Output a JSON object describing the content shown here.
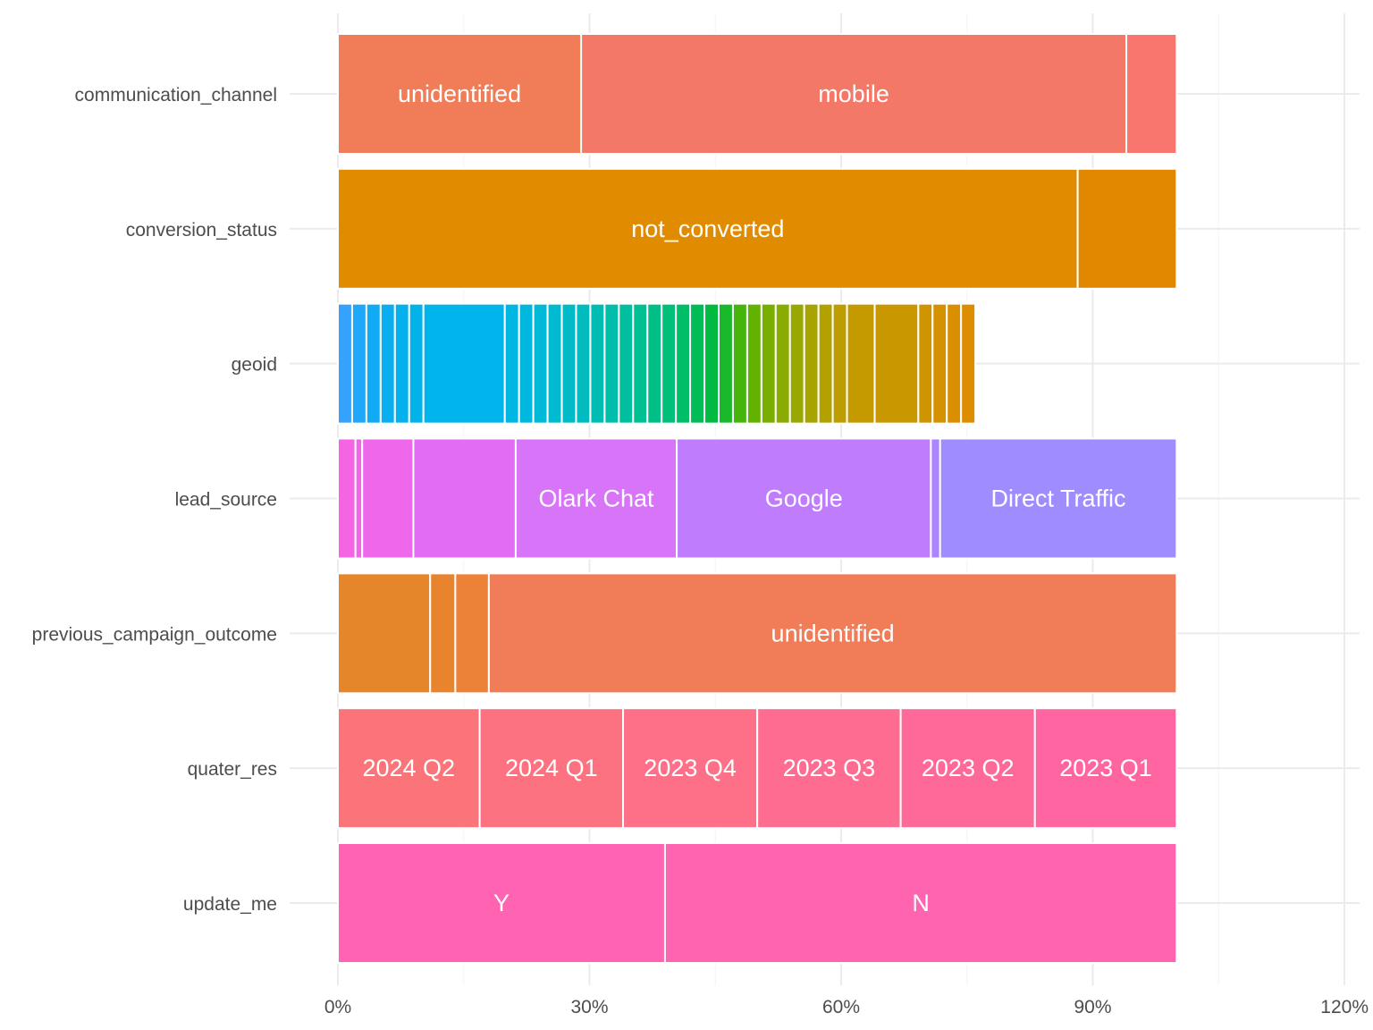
{
  "chart_data": {
    "type": "bar",
    "orientation": "horizontal",
    "stacked": true,
    "title": "",
    "xlabel": "",
    "ylabel": "",
    "xlim": [
      0,
      1.2
    ],
    "x_ticks": [
      {
        "value": 0,
        "label": "0%"
      },
      {
        "value": 0.3,
        "label": "30%"
      },
      {
        "value": 0.6,
        "label": "60%"
      },
      {
        "value": 0.9,
        "label": "90%"
      },
      {
        "value": 1.2,
        "label": "120%"
      }
    ],
    "grid": true,
    "legend": "none",
    "categories": [
      "communication_channel",
      "conversion_status",
      "geoid",
      "lead_source",
      "previous_campaign_outcome",
      "quater_res",
      "update_me"
    ],
    "bars": [
      {
        "category": "communication_channel",
        "segments": [
          {
            "label": "unidentified",
            "value": 0.29,
            "color": "#F07C58"
          },
          {
            "label": "mobile",
            "value": 0.65,
            "color": "#F47867"
          },
          {
            "label": "",
            "value": 0.06,
            "color": "#F8766D"
          }
        ]
      },
      {
        "category": "conversion_status",
        "segments": [
          {
            "label": "not_converted",
            "value": 0.882,
            "color": "#E08B00"
          },
          {
            "label": "",
            "value": 0.118,
            "color": "#E18800"
          }
        ]
      },
      {
        "category": "geoid",
        "segments": [
          {
            "label": "",
            "value": 0.017,
            "color": "#35A2FF"
          },
          {
            "label": "",
            "value": 0.017,
            "color": "#1FA8FA"
          },
          {
            "label": "",
            "value": 0.017,
            "color": "#11ABF5"
          },
          {
            "label": "",
            "value": 0.017,
            "color": "#09AEF0"
          },
          {
            "label": "",
            "value": 0.017,
            "color": "#04B1EC"
          },
          {
            "label": "",
            "value": 0.017,
            "color": "#02B3E9"
          },
          {
            "label": "",
            "value": 0.097,
            "color": "#00B5EC"
          },
          {
            "label": "",
            "value": 0.017,
            "color": "#00B7E4"
          },
          {
            "label": "",
            "value": 0.017,
            "color": "#00B8DE"
          },
          {
            "label": "",
            "value": 0.017,
            "color": "#00B9D7"
          },
          {
            "label": "",
            "value": 0.017,
            "color": "#00BACF"
          },
          {
            "label": "",
            "value": 0.017,
            "color": "#00BBC7"
          },
          {
            "label": "",
            "value": 0.017,
            "color": "#00BCBE"
          },
          {
            "label": "",
            "value": 0.017,
            "color": "#00BDB4"
          },
          {
            "label": "",
            "value": 0.017,
            "color": "#00BEAA"
          },
          {
            "label": "",
            "value": 0.017,
            "color": "#00BF9F"
          },
          {
            "label": "",
            "value": 0.017,
            "color": "#00BF93"
          },
          {
            "label": "",
            "value": 0.017,
            "color": "#00BF86"
          },
          {
            "label": "",
            "value": 0.017,
            "color": "#00BF78"
          },
          {
            "label": "",
            "value": 0.017,
            "color": "#00BE68"
          },
          {
            "label": "",
            "value": 0.017,
            "color": "#00BC56"
          },
          {
            "label": "",
            "value": 0.017,
            "color": "#00BA42"
          },
          {
            "label": "",
            "value": 0.017,
            "color": "#1AB82B"
          },
          {
            "label": "",
            "value": 0.017,
            "color": "#45B50E"
          },
          {
            "label": "",
            "value": 0.017,
            "color": "#62B200"
          },
          {
            "label": "",
            "value": 0.017,
            "color": "#78AE00"
          },
          {
            "label": "",
            "value": 0.017,
            "color": "#8AAB00"
          },
          {
            "label": "",
            "value": 0.017,
            "color": "#99A800"
          },
          {
            "label": "",
            "value": 0.017,
            "color": "#A7A400"
          },
          {
            "label": "",
            "value": 0.017,
            "color": "#B3A100"
          },
          {
            "label": "",
            "value": 0.017,
            "color": "#BD9D00"
          },
          {
            "label": "",
            "value": 0.033,
            "color": "#C49A00"
          },
          {
            "label": "",
            "value": 0.052,
            "color": "#C99800"
          },
          {
            "label": "",
            "value": 0.017,
            "color": "#CF9500"
          },
          {
            "label": "",
            "value": 0.017,
            "color": "#D49200"
          },
          {
            "label": "",
            "value": 0.017,
            "color": "#D98F00"
          },
          {
            "label": "",
            "value": 0.017,
            "color": "#DC8D00"
          }
        ]
      },
      {
        "category": "lead_source",
        "segments": [
          {
            "label": "",
            "value": 0.021,
            "color": "#F564E3"
          },
          {
            "label": "",
            "value": 0.008,
            "color": "#F166E6"
          },
          {
            "label": "",
            "value": 0.061,
            "color": "#EF67EB"
          },
          {
            "label": "",
            "value": 0.122,
            "color": "#E26CF4"
          },
          {
            "label": "Olark Chat",
            "value": 0.192,
            "color": "#D774F8"
          },
          {
            "label": "Google",
            "value": 0.303,
            "color": "#BF7DFE"
          },
          {
            "label": "",
            "value": 0.011,
            "color": "#AB84FF"
          },
          {
            "label": "Direct Traffic",
            "value": 0.282,
            "color": "#9F8CFF"
          }
        ]
      },
      {
        "category": "previous_campaign_outcome",
        "segments": [
          {
            "label": "",
            "value": 0.11,
            "color": "#E6862A"
          },
          {
            "label": "",
            "value": 0.03,
            "color": "#E8832E"
          },
          {
            "label": "",
            "value": 0.04,
            "color": "#EC8138"
          },
          {
            "label": "unidentified",
            "value": 0.82,
            "color": "#F07C58"
          }
        ]
      },
      {
        "category": "quater_res",
        "segments": [
          {
            "label": "2024 Q2",
            "value": 0.169,
            "color": "#FA7479"
          },
          {
            "label": "2024 Q1",
            "value": 0.171,
            "color": "#FC7280"
          },
          {
            "label": "2023 Q4",
            "value": 0.16,
            "color": "#FD7088"
          },
          {
            "label": "2023 Q3",
            "value": 0.171,
            "color": "#FF6C91"
          },
          {
            "label": "2023 Q2",
            "value": 0.16,
            "color": "#FF6999"
          },
          {
            "label": "2023 Q1",
            "value": 0.169,
            "color": "#FF66A1"
          }
        ]
      },
      {
        "category": "update_me",
        "segments": [
          {
            "label": "Y",
            "value": 0.39,
            "color": "#FF63B1"
          },
          {
            "label": "N",
            "value": 0.61,
            "color": "#FF64B0"
          }
        ]
      }
    ]
  }
}
